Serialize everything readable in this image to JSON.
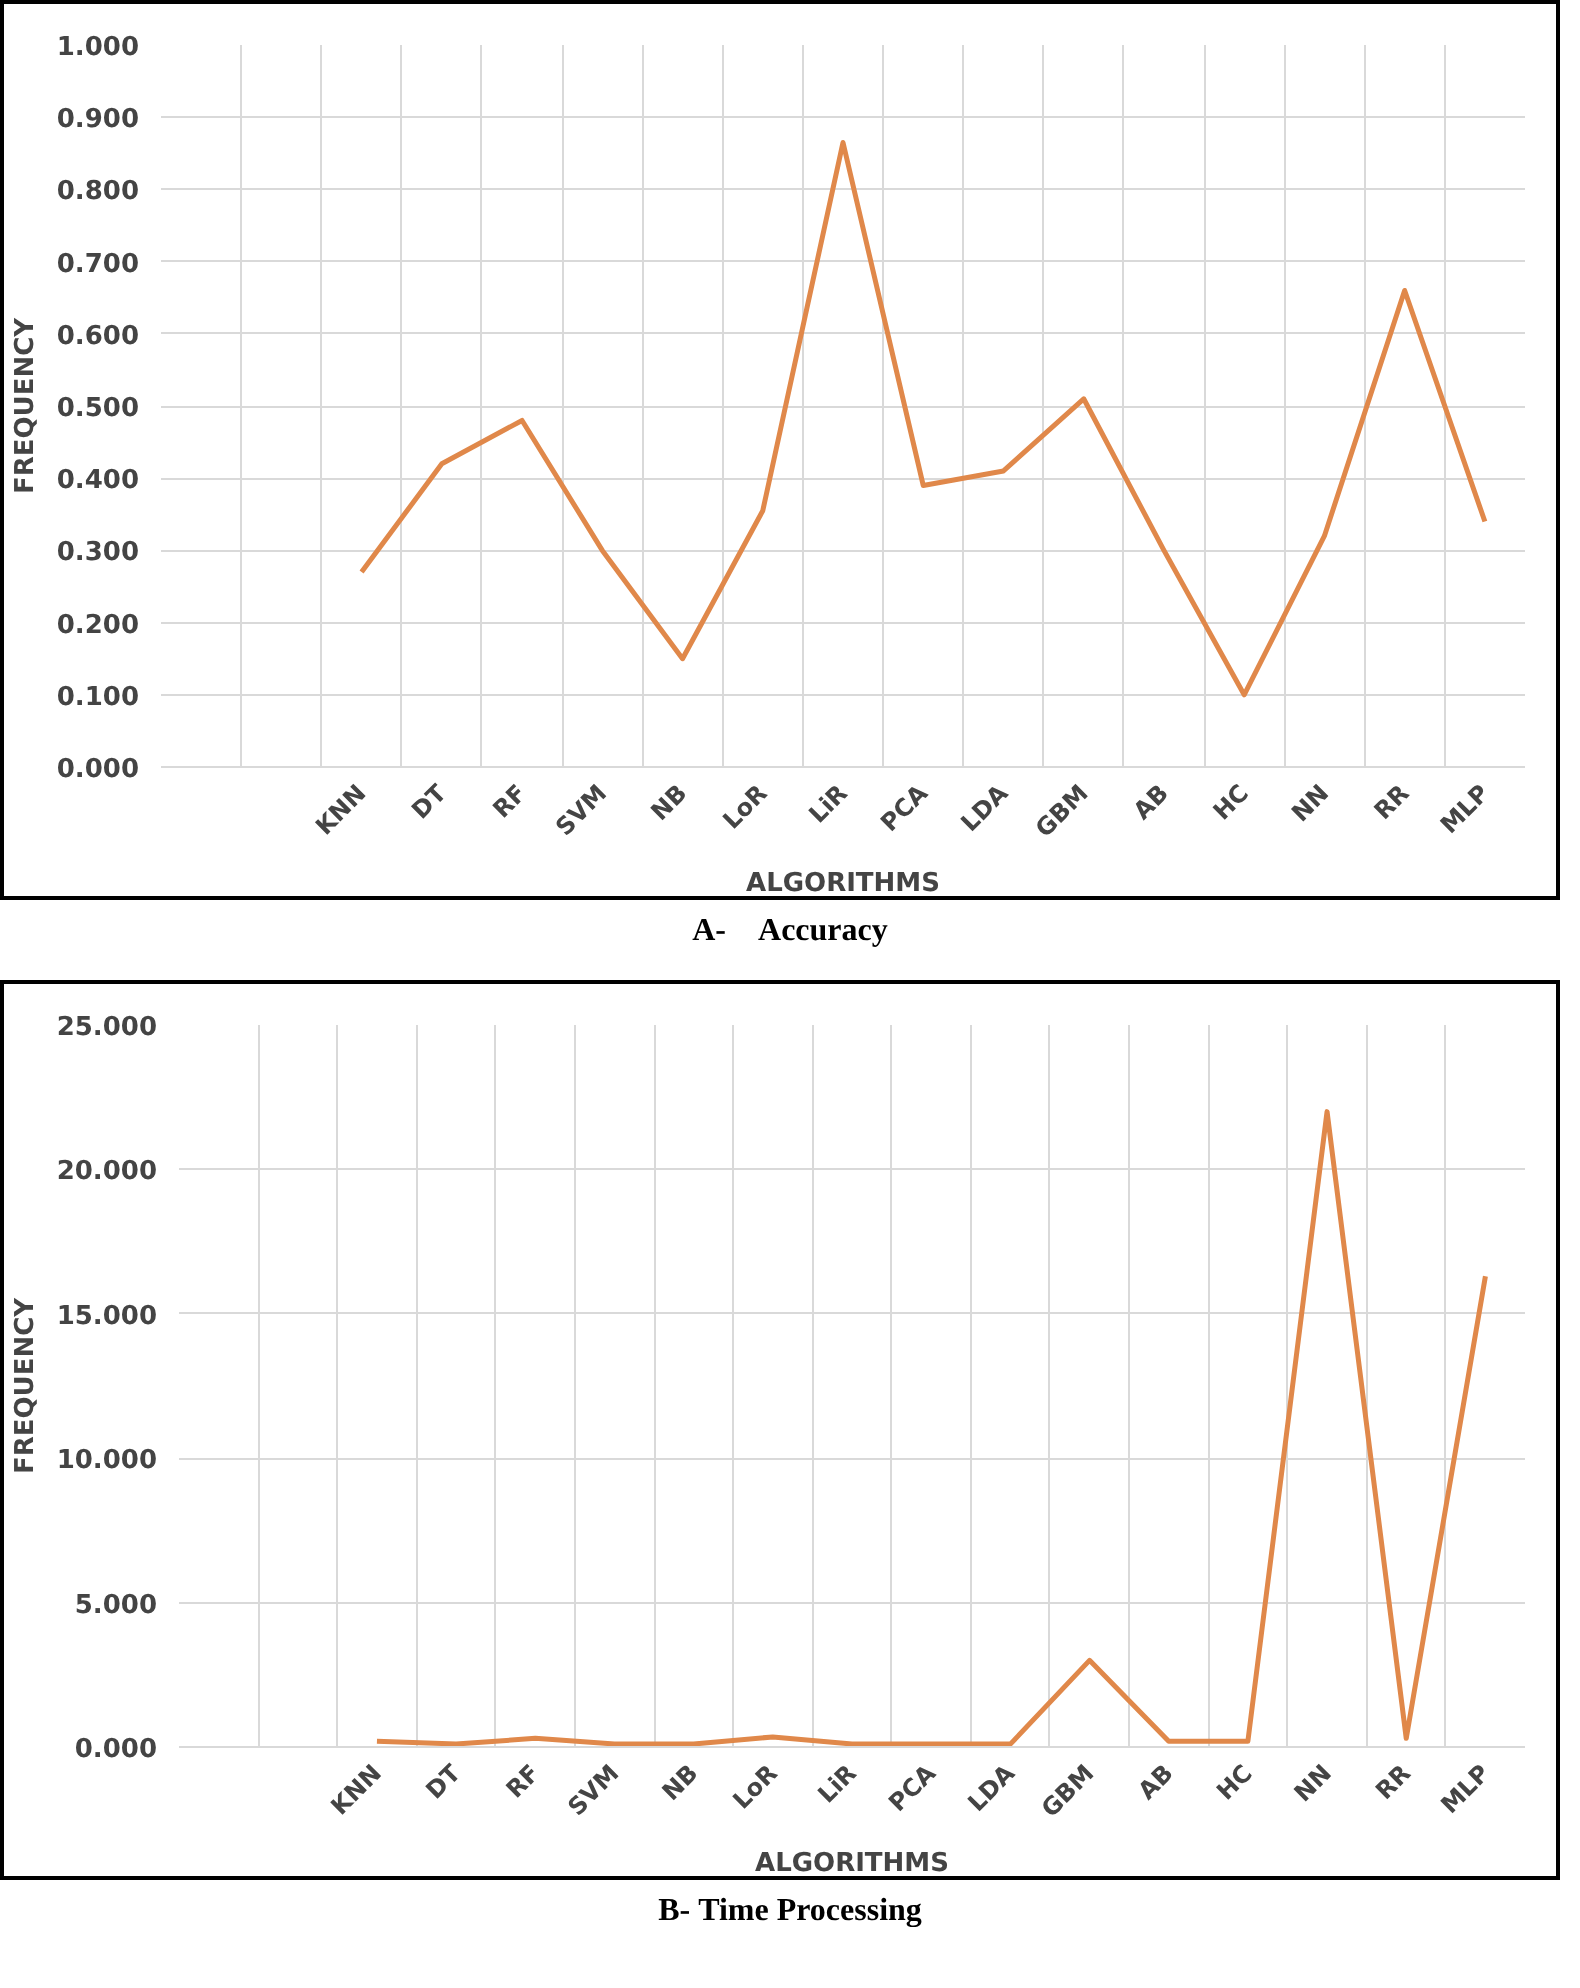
{
  "chart_data": [
    {
      "type": "line",
      "title": "A-    Accuracy",
      "xlabel": "ALGORITHMS",
      "ylabel": "FREQUENCY",
      "color": "#e0884a",
      "grid": true,
      "categories": [
        null,
        null,
        "KNN",
        "DT",
        "RF",
        "SVM",
        "NB",
        "LoR",
        "LiR",
        "PCA",
        "LDA",
        "GBM",
        "AB",
        "HC",
        "NN",
        "RR",
        "MLP"
      ],
      "values": [
        null,
        null,
        0.27,
        0.42,
        0.48,
        0.3,
        0.15,
        0.355,
        0.865,
        0.39,
        0.41,
        0.51,
        0.3,
        0.1,
        0.32,
        0.66,
        0.34
      ],
      "ylim": [
        0,
        1
      ],
      "yticks": [
        {
          "value": 0,
          "label": "0.000"
        },
        {
          "value": 0.1,
          "label": "0.100"
        },
        {
          "value": 0.2,
          "label": "0.200"
        },
        {
          "value": 0.3,
          "label": "0.300"
        },
        {
          "value": 0.4,
          "label": "0.400"
        },
        {
          "value": 0.5,
          "label": "0.500"
        },
        {
          "value": 0.6,
          "label": "0.600"
        },
        {
          "value": 0.7,
          "label": "0.700"
        },
        {
          "value": 0.8,
          "label": "0.800"
        },
        {
          "value": 0.9,
          "label": "0.900"
        },
        {
          "value": 1,
          "label": "1.000"
        }
      ]
    },
    {
      "type": "line",
      "title": "B- Time Processing",
      "xlabel": "ALGORITHMS",
      "ylabel": "FREQUENCY",
      "color": "#e0884a",
      "grid": true,
      "categories": [
        null,
        null,
        "KNN",
        "DT",
        "RF",
        "SVM",
        "NB",
        "LoR",
        "LiR",
        "PCA",
        "LDA",
        "GBM",
        "AB",
        "HC",
        "NN",
        "RR",
        "MLP"
      ],
      "values": [
        null,
        null,
        0.2,
        0.1,
        0.3,
        0.1,
        0.1,
        0.35,
        0.1,
        0.1,
        0.1,
        3.0,
        0.2,
        0.2,
        22.0,
        0.3,
        16.3
      ],
      "ylim": [
        0,
        25
      ],
      "yticks": [
        {
          "value": 0,
          "label": "0.000"
        },
        {
          "value": 5,
          "label": "5.000"
        },
        {
          "value": 10,
          "label": "10.000"
        },
        {
          "value": 15,
          "label": "15.000"
        },
        {
          "value": 20,
          "label": "20.000"
        },
        {
          "value": 25,
          "label": "25.000"
        }
      ]
    }
  ]
}
